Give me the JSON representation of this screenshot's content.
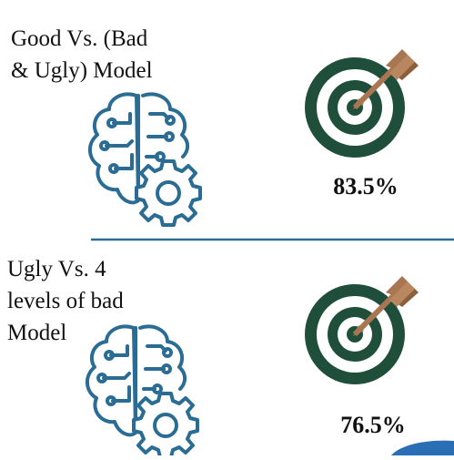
{
  "sections": [
    {
      "title_lines": [
        "Good Vs. (Bad",
        "& Ugly) Model"
      ],
      "accuracy": "83.5%"
    },
    {
      "title_lines": [
        "Ugly Vs. 4",
        "levels of bad",
        "Model"
      ],
      "accuracy": "76.5%"
    }
  ]
}
